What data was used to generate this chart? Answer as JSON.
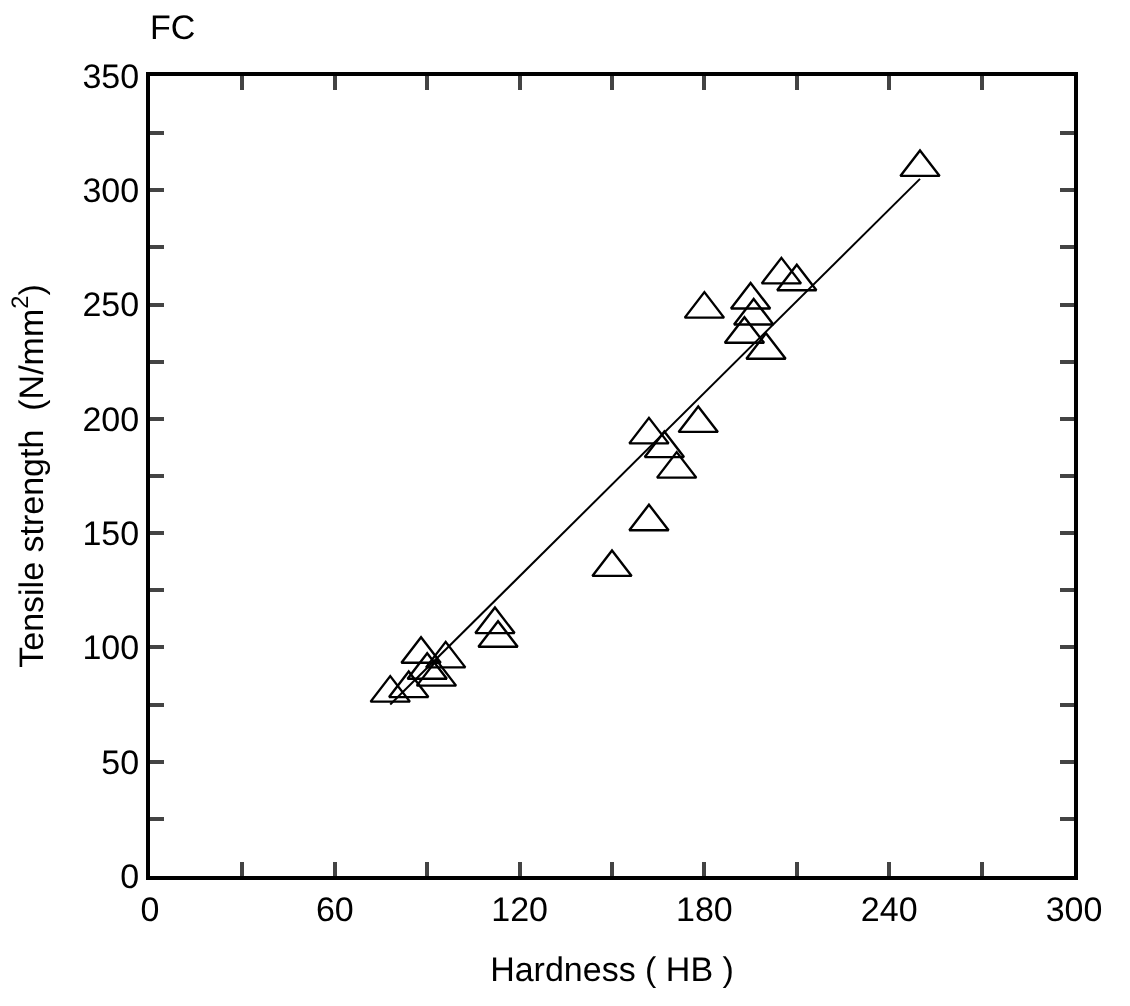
{
  "chart_data": {
    "type": "scatter",
    "title": "FC",
    "xlabel": "Hardness ( HB )",
    "ylabel": "Tensile strength  (N/mm$^{2}$)",
    "series": [
      {
        "marker": "triangle",
        "color": "#000000",
        "x": [
          78,
          84,
          88,
          90,
          93,
          96,
          112,
          113,
          150,
          162,
          162,
          167,
          171,
          178,
          180,
          195,
          193,
          196,
          200,
          205,
          210,
          250
        ],
        "values": [
          80,
          82,
          97,
          90,
          87,
          95,
          110,
          104,
          135,
          155,
          193,
          187,
          178,
          198,
          248,
          252,
          237,
          245,
          230,
          263,
          260,
          310
        ]
      },
      {
        "type": "line",
        "marker": "none",
        "color": "#000000",
        "x": [
          78,
          250
        ],
        "values": [
          75,
          305
        ]
      }
    ],
    "xlim": [
      0,
      300
    ],
    "ylim": [
      0,
      350
    ],
    "xticks": [
      0,
      {
        "value": 30,
        "label": null
      },
      60,
      {
        "value": 90,
        "label": null
      },
      120,
      {
        "value": 150,
        "label": null
      },
      180,
      {
        "value": 210,
        "label": null
      },
      240,
      {
        "value": 270,
        "label": null
      },
      300
    ],
    "yticks": [
      0,
      {
        "value": 25,
        "label": null
      },
      50,
      {
        "value": 75,
        "label": null
      },
      100,
      {
        "value": 125,
        "label": null
      },
      150,
      {
        "value": 175,
        "label": null
      },
      200,
      {
        "value": 225,
        "label": null
      },
      250,
      {
        "value": 275,
        "label": null
      },
      300,
      {
        "value": 325,
        "label": null
      },
      350
    ],
    "grid": false,
    "legend": false
  }
}
